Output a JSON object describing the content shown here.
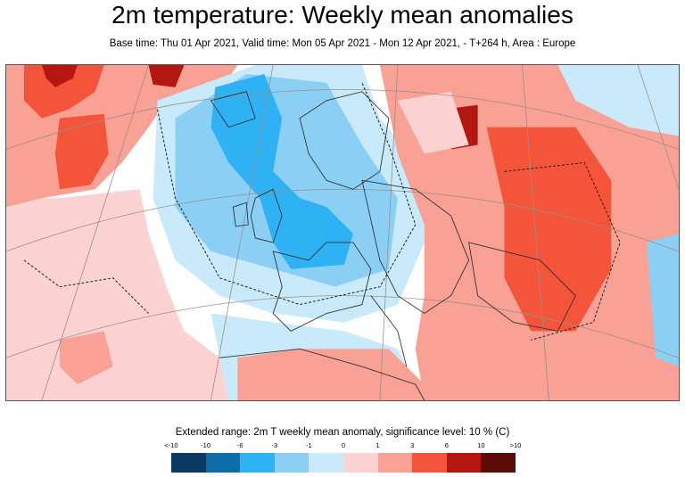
{
  "header": {
    "title": "2m temperature: Weekly mean anomalies",
    "subtitle": "Base time: Thu 01 Apr 2021, Valid time: Mon 05 Apr 2021 - Mon 12 Apr 2021, - T+264 h, Area : Europe"
  },
  "legend": {
    "title": "Extended range: 2m T weekly mean anomaly, significance level: 10 % (C)",
    "ticks": [
      "<-10",
      "-10",
      "-6",
      "-3",
      "-1",
      "0",
      "1",
      "3",
      "6",
      "10",
      ">10"
    ],
    "colors": [
      "#0b3a63",
      "#0f6ea8",
      "#2eb2f3",
      "#8ccff5",
      "#c9eafa",
      "#fcd2d2",
      "#f8a194",
      "#f4543a",
      "#b3170f",
      "#5c0b06"
    ]
  }
}
